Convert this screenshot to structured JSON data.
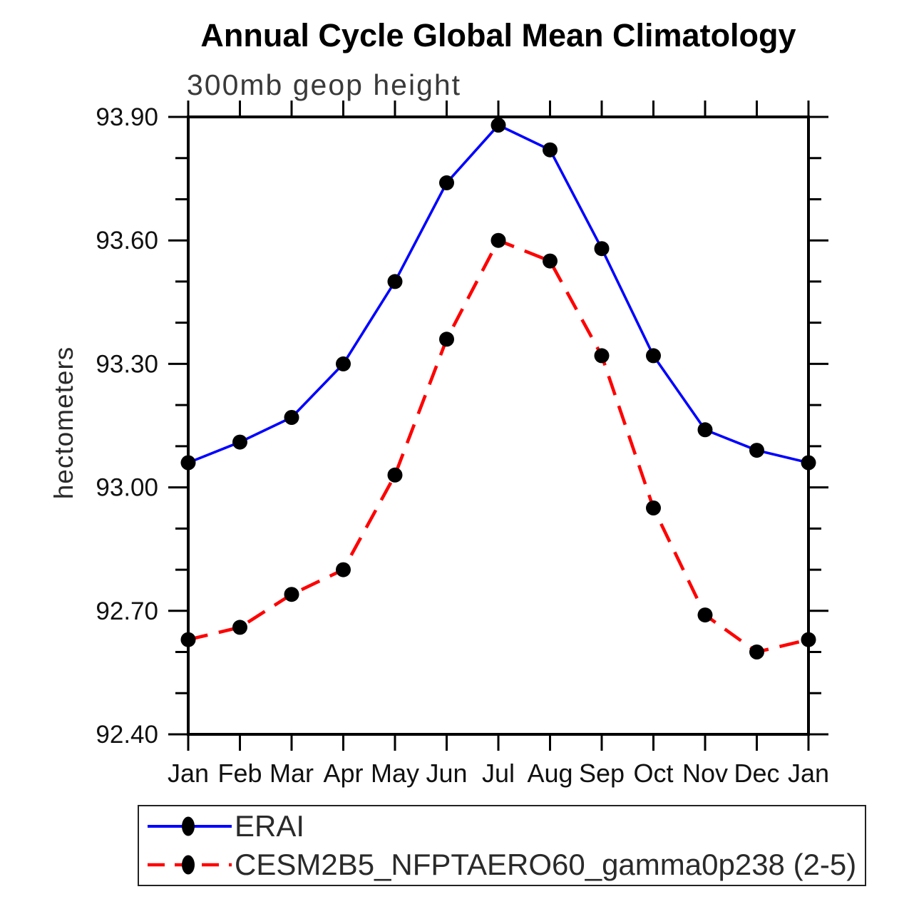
{
  "title": "Annual Cycle Global Mean Climatology",
  "subtitle": "300mb geop height",
  "ylabel": "hectometers",
  "legend": {
    "position": "bottom",
    "items": [
      {
        "label": "ERAI",
        "color": "#0000ff",
        "line_style": "solid",
        "marker": "filled-circle",
        "marker_color": "#000000"
      },
      {
        "label": "CESM2B5_NFPTAERO60_gamma0p238 (2-5)",
        "color": "#ff0000",
        "line_style": "dashed",
        "marker": "filled-circle",
        "marker_color": "#000000"
      }
    ]
  },
  "chart_data": {
    "type": "line",
    "title": "Annual Cycle Global Mean Climatology",
    "subtitle": "300mb geop height",
    "xlabel": "",
    "ylabel": "hectometers",
    "x_tick_labels": [
      "Jan",
      "Feb",
      "Mar",
      "Apr",
      "May",
      "Jun",
      "Jul",
      "Aug",
      "Sep",
      "Oct",
      "Nov",
      "Dec",
      "Jan"
    ],
    "series": [
      {
        "name": "ERAI",
        "color": "#0000ff",
        "line_style": "solid",
        "marker": "filled-circle",
        "marker_color": "#000000",
        "values": [
          93.06,
          93.11,
          93.17,
          93.3,
          93.5,
          93.74,
          93.88,
          93.82,
          93.58,
          93.32,
          93.14,
          93.09,
          93.06
        ]
      },
      {
        "name": "CESM2B5_NFPTAERO60_gamma0p238 (2-5)",
        "color": "#ff0000",
        "line_style": "dashed",
        "marker": "filled-circle",
        "marker_color": "#000000",
        "values": [
          92.63,
          92.66,
          92.74,
          92.8,
          93.03,
          93.36,
          93.6,
          93.55,
          93.32,
          92.95,
          92.69,
          92.6,
          92.63
        ]
      }
    ],
    "ylim": [
      92.4,
      93.9
    ],
    "yticks_major": [
      92.4,
      92.7,
      93.0,
      93.3,
      93.6,
      93.9
    ],
    "ytick_labels": [
      "92.40",
      "92.70",
      "93.00",
      "93.30",
      "93.60",
      "93.90"
    ],
    "ytick_minor_step": 0.1,
    "grid": false,
    "legend_position": "bottom",
    "axis_color": "#000000"
  }
}
